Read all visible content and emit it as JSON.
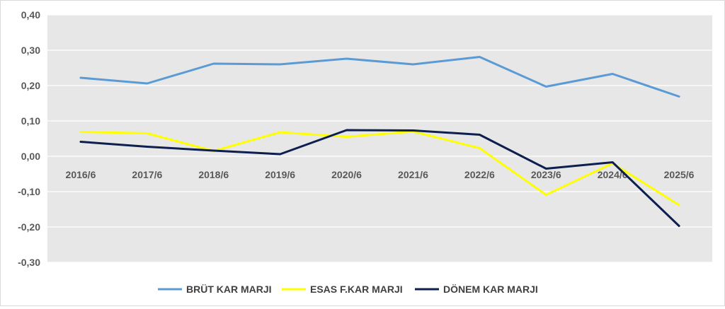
{
  "chart_data": {
    "type": "line",
    "title": "",
    "xlabel": "",
    "ylabel": "",
    "categories": [
      "2016/6",
      "2017/6",
      "2018/6",
      "2019/6",
      "2020/6",
      "2021/6",
      "2022/6",
      "2023/6",
      "2024/6",
      "2025/6"
    ],
    "ylim": [
      -0.3,
      0.4
    ],
    "yticks": [
      "0,40",
      "0,30",
      "0,20",
      "0,10",
      "0,00",
      "-0,10",
      "-0,20",
      "-0,30"
    ],
    "ytick_values": [
      0.4,
      0.3,
      0.2,
      0.1,
      0.0,
      -0.1,
      -0.2,
      -0.3
    ],
    "grid": true,
    "legend_position": "bottom",
    "plot_background": "#e7e7e7",
    "series": [
      {
        "name": "BRÜT KAR MARJI",
        "color": "#5b9bd5",
        "values": [
          0.222,
          0.206,
          0.262,
          0.26,
          0.276,
          0.26,
          0.281,
          0.197,
          0.233,
          0.169
        ]
      },
      {
        "name": "ESAS F.KAR MARJI",
        "color": "#ffff00",
        "values": [
          0.069,
          0.065,
          0.015,
          0.068,
          0.055,
          0.07,
          0.023,
          -0.109,
          -0.02,
          -0.138
        ]
      },
      {
        "name": "DÖNEM KAR MARJI",
        "color": "#0d1f4f",
        "values": [
          0.041,
          0.027,
          0.016,
          0.006,
          0.074,
          0.073,
          0.061,
          -0.035,
          -0.017,
          -0.197
        ]
      }
    ]
  }
}
